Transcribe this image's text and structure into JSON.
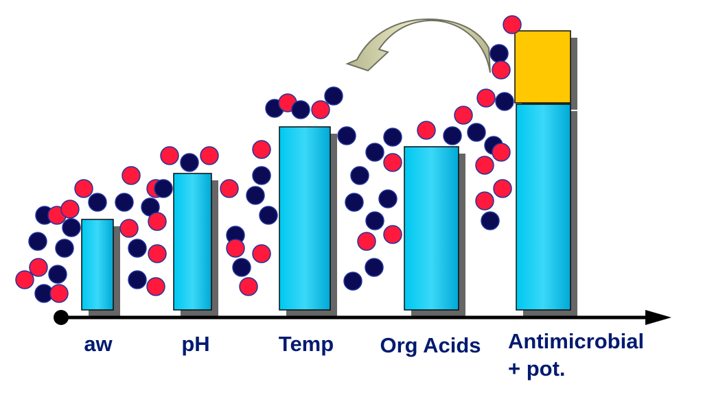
{
  "colors": {
    "background": "#ffffff",
    "bar_fill": "#00c8f0",
    "bar_fill_light": "#3ad8f8",
    "bar_fill_dark": "#00a9d6",
    "bar_shadow": "#666666",
    "bar_outline": "#0a0a0a",
    "top_block_fill": "#ffc800",
    "red_particle": "#ff1a3d",
    "navy_particle": "#0b0b55",
    "particle_outline": "#223399",
    "axis": "#000000",
    "label_text": "#001a70",
    "arrow_fill_light": "#f2f2d2",
    "arrow_fill_dark": "#b7b78e",
    "arrow_outline": "#707060"
  },
  "hurdles": [
    {
      "id": "aw",
      "label": "aw"
    },
    {
      "id": "ph",
      "label": "pH"
    },
    {
      "id": "temp",
      "label": "Temp"
    },
    {
      "id": "org-acids",
      "label": "Org Acids"
    },
    {
      "id": "antimicrobial",
      "label_lines": [
        "Antimicrobial",
        "+ pot."
      ],
      "has_extra_block": true
    }
  ],
  "icons": {
    "arrow": "curved-arrow-icon",
    "axis": "arrow-axis-icon",
    "particle_red": "red-circle-icon",
    "particle_navy": "navy-circle-icon"
  }
}
